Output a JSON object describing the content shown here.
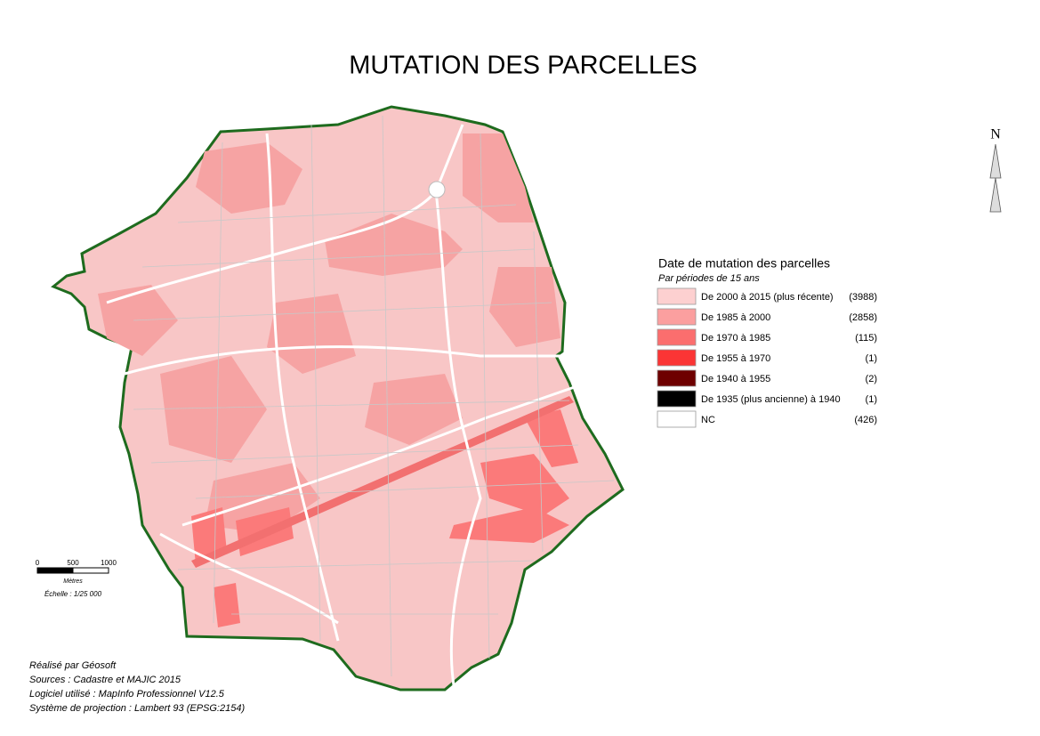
{
  "title": "MUTATION DES PARCELLES",
  "north": "N",
  "legend": {
    "title": "Date de mutation des parcelles",
    "subtitle": "Par périodes de 15 ans",
    "items": [
      {
        "label": "De 2000 à 2015 (plus récente)",
        "count": "(3988)",
        "color": "#fdd0d0"
      },
      {
        "label": "De 1985 à 2000",
        "count": "(2858)",
        "color": "#fb9f9f"
      },
      {
        "label": "De 1970 à 1985",
        "count": "(115)",
        "color": "#fb6e6e"
      },
      {
        "label": "De 1955 à 1970",
        "count": "(1)",
        "color": "#fb3535"
      },
      {
        "label": "De 1940 à 1955",
        "count": "(2)",
        "color": "#6e0000"
      },
      {
        "label": "De 1935 (plus ancienne) à 1940",
        "count": "(1)",
        "color": "#000000"
      },
      {
        "label": "NC",
        "count": "(426)",
        "color": "#ffffff"
      }
    ]
  },
  "scale": {
    "ticks": [
      "0",
      "500",
      "1000"
    ],
    "unit": "Mètres",
    "ratio": "Échelle : 1/25 000"
  },
  "credits": [
    "Réalisé par Géosoft",
    "Sources : Cadastre et MAJIC 2015",
    "Logiciel utilisé : MapInfo Professionnel V12.5",
    "Système de projection : Lambert 93 (EPSG:2154)"
  ]
}
